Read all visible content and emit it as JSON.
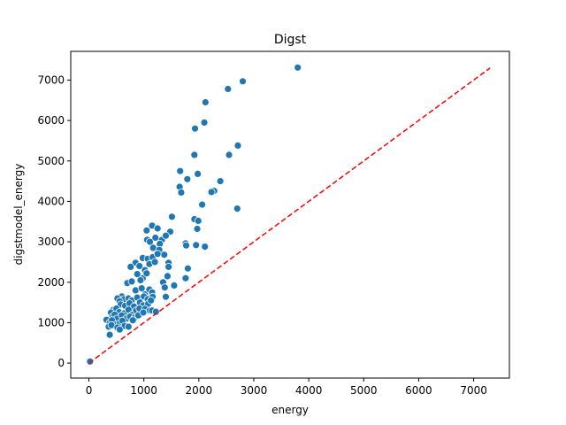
{
  "chart_data": {
    "type": "scatter",
    "title": "Digst",
    "xlabel": "energy",
    "ylabel": "digstmodel_energy",
    "xlim": [
      -330,
      7650
    ],
    "ylim": [
      -370,
      7710
    ],
    "xticks": [
      0,
      1000,
      2000,
      3000,
      4000,
      5000,
      6000,
      7000
    ],
    "yticks": [
      0,
      1000,
      2000,
      3000,
      4000,
      5000,
      6000,
      7000
    ],
    "grid": false,
    "marker_color": "#1f77b4",
    "reference_line": {
      "style": "dashed",
      "color": "#ff0000",
      "from": [
        0,
        0
      ],
      "to": [
        7300,
        7300
      ]
    },
    "points": [
      [
        20,
        40
      ],
      [
        3800,
        7310
      ],
      [
        2800,
        6970
      ],
      [
        2530,
        6780
      ],
      [
        2120,
        6450
      ],
      [
        2100,
        5950
      ],
      [
        1930,
        5800
      ],
      [
        2710,
        5380
      ],
      [
        2550,
        5150
      ],
      [
        1920,
        5150
      ],
      [
        1660,
        4750
      ],
      [
        1980,
        4680
      ],
      [
        1790,
        4550
      ],
      [
        2390,
        4500
      ],
      [
        1650,
        4360
      ],
      [
        1680,
        4220
      ],
      [
        2280,
        4260
      ],
      [
        2230,
        4230
      ],
      [
        2060,
        3920
      ],
      [
        2700,
        3820
      ],
      [
        1510,
        3620
      ],
      [
        1920,
        3560
      ],
      [
        1990,
        3520
      ],
      [
        1970,
        3320
      ],
      [
        1050,
        3280
      ],
      [
        1150,
        3400
      ],
      [
        1250,
        3330
      ],
      [
        1480,
        3250
      ],
      [
        1060,
        3050
      ],
      [
        1210,
        3100
      ],
      [
        1110,
        3000
      ],
      [
        1330,
        3050
      ],
      [
        1400,
        3150
      ],
      [
        1290,
        2950
      ],
      [
        1760,
        2960
      ],
      [
        1770,
        2910
      ],
      [
        1950,
        2920
      ],
      [
        2110,
        2880
      ],
      [
        1170,
        2850
      ],
      [
        1280,
        2800
      ],
      [
        1370,
        2680
      ],
      [
        980,
        2600
      ],
      [
        1070,
        2580
      ],
      [
        1160,
        2620
      ],
      [
        1250,
        2700
      ],
      [
        850,
        2480
      ],
      [
        920,
        2400
      ],
      [
        760,
        2380
      ],
      [
        1020,
        2300
      ],
      [
        1100,
        2450
      ],
      [
        1200,
        2500
      ],
      [
        1450,
        2480
      ],
      [
        1450,
        2380
      ],
      [
        1800,
        2340
      ],
      [
        980,
        2100
      ],
      [
        1050,
        2220
      ],
      [
        880,
        2200
      ],
      [
        940,
        2050
      ],
      [
        1350,
        2000
      ],
      [
        1430,
        2150
      ],
      [
        1550,
        1920
      ],
      [
        1760,
        2100
      ],
      [
        700,
        1980
      ],
      [
        780,
        2020
      ],
      [
        850,
        1800
      ],
      [
        960,
        1850
      ],
      [
        1020,
        1700
      ],
      [
        1100,
        1820
      ],
      [
        1150,
        1750
      ],
      [
        1380,
        1870
      ],
      [
        600,
        1650
      ],
      [
        640,
        1580
      ],
      [
        720,
        1600
      ],
      [
        780,
        1550
      ],
      [
        880,
        1620
      ],
      [
        1000,
        1650
      ],
      [
        1070,
        1580
      ],
      [
        1160,
        1640
      ],
      [
        1400,
        1640
      ],
      [
        520,
        1600
      ],
      [
        560,
        1530
      ],
      [
        580,
        1450
      ],
      [
        660,
        1420
      ],
      [
        740,
        1480
      ],
      [
        820,
        1400
      ],
      [
        930,
        1500
      ],
      [
        990,
        1430
      ],
      [
        1080,
        1470
      ],
      [
        1130,
        1550
      ],
      [
        450,
        1320
      ],
      [
        500,
        1350
      ],
      [
        550,
        1260
      ],
      [
        640,
        1230
      ],
      [
        720,
        1320
      ],
      [
        790,
        1200
      ],
      [
        860,
        1300
      ],
      [
        920,
        1350
      ],
      [
        1020,
        1340
      ],
      [
        1110,
        1300
      ],
      [
        400,
        1250
      ],
      [
        430,
        1150
      ],
      [
        470,
        1200
      ],
      [
        510,
        1100
      ],
      [
        600,
        1180
      ],
      [
        680,
        1100
      ],
      [
        750,
        1150
      ],
      [
        830,
        1120
      ],
      [
        900,
        1180
      ],
      [
        990,
        1250
      ],
      [
        320,
        1070
      ],
      [
        380,
        1000
      ],
      [
        420,
        1060
      ],
      [
        490,
        950
      ],
      [
        560,
        980
      ],
      [
        610,
        1050
      ],
      [
        650,
        920
      ],
      [
        720,
        900
      ],
      [
        800,
        1060
      ],
      [
        360,
        900
      ],
      [
        410,
        940
      ],
      [
        520,
        880
      ],
      [
        560,
        830
      ],
      [
        380,
        700
      ],
      [
        1150,
        1300
      ],
      [
        1220,
        1270
      ]
    ]
  }
}
